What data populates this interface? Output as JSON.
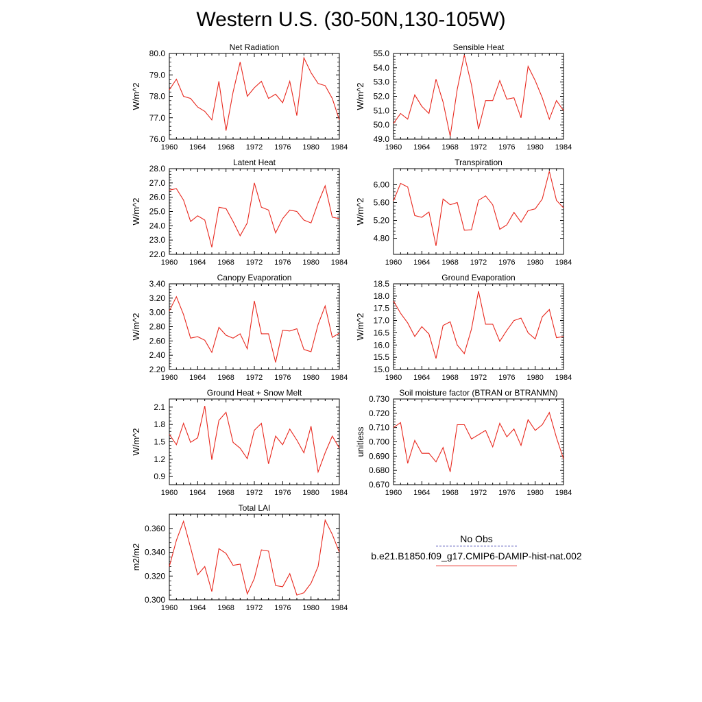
{
  "title": "Western U.S. (30-50N,130-105W)",
  "line_color": "#e8281e",
  "legend": {
    "obs_label": "No Obs",
    "obs_color": "#3b3bb0",
    "case_label": "b.e21.B1850.f09_g17.CMIP6-DAMIP-hist-nat.002",
    "case_color": "#e8281e"
  },
  "chart_data": [
    {
      "type": "line",
      "title": "Net Radiation",
      "ylabel": "W/m^2",
      "xlim": [
        1960,
        1984
      ],
      "ylim": [
        76.0,
        80.0
      ],
      "yticks": [
        "80.0",
        "79.0",
        "78.0",
        "77.0",
        "76.0"
      ],
      "xticks": [
        "1960",
        "1964",
        "1968",
        "1972",
        "1976",
        "1980",
        "1984"
      ],
      "x": [
        1960,
        1961,
        1962,
        1963,
        1964,
        1965,
        1966,
        1967,
        1968,
        1969,
        1970,
        1971,
        1972,
        1973,
        1974,
        1975,
        1976,
        1977,
        1978,
        1979,
        1980,
        1981,
        1982,
        1983,
        1984
      ],
      "series": [
        {
          "values": [
            78.3,
            78.8,
            78.0,
            77.9,
            77.5,
            77.3,
            76.9,
            78.7,
            76.4,
            78.2,
            79.6,
            78.0,
            78.4,
            78.7,
            77.9,
            78.1,
            77.7,
            78.7,
            77.1,
            79.8,
            79.1,
            78.6,
            78.5,
            77.9,
            76.9
          ]
        }
      ]
    },
    {
      "type": "line",
      "title": "Sensible Heat",
      "ylabel": "W/m^2",
      "xlim": [
        1960,
        1984
      ],
      "ylim": [
        49.0,
        55.0
      ],
      "yticks": [
        "55.0",
        "54.0",
        "53.0",
        "52.0",
        "51.0",
        "50.0",
        "49.0"
      ],
      "xticks": [
        "1960",
        "1964",
        "1968",
        "1972",
        "1976",
        "1980",
        "1984"
      ],
      "x": [
        1960,
        1961,
        1962,
        1963,
        1964,
        1965,
        1966,
        1967,
        1968,
        1969,
        1970,
        1971,
        1972,
        1973,
        1974,
        1975,
        1976,
        1977,
        1978,
        1979,
        1980,
        1981,
        1982,
        1983,
        1984
      ],
      "series": [
        {
          "values": [
            50.1,
            50.8,
            50.4,
            52.1,
            51.3,
            50.8,
            53.2,
            51.6,
            49.2,
            52.5,
            54.9,
            52.8,
            49.7,
            51.7,
            51.7,
            53.1,
            51.8,
            51.9,
            50.5,
            54.1,
            53.1,
            51.9,
            50.4,
            51.7,
            51.0
          ]
        }
      ]
    },
    {
      "type": "line",
      "title": "Latent Heat",
      "ylabel": "W/m^2",
      "xlim": [
        1960,
        1984
      ],
      "ylim": [
        22.0,
        28.0
      ],
      "yticks": [
        "28.0",
        "27.0",
        "26.0",
        "25.0",
        "24.0",
        "23.0",
        "22.0"
      ],
      "xticks": [
        "1960",
        "1964",
        "1968",
        "1972",
        "1976",
        "1980",
        "1984"
      ],
      "x": [
        1960,
        1961,
        1962,
        1963,
        1964,
        1965,
        1966,
        1967,
        1968,
        1969,
        1970,
        1971,
        1972,
        1973,
        1974,
        1975,
        1976,
        1977,
        1978,
        1979,
        1980,
        1981,
        1982,
        1983,
        1984
      ],
      "series": [
        {
          "values": [
            26.5,
            26.6,
            25.8,
            24.3,
            24.7,
            24.4,
            22.5,
            25.3,
            25.2,
            24.3,
            23.3,
            24.2,
            27.0,
            25.3,
            25.1,
            23.5,
            24.5,
            25.1,
            25.0,
            24.4,
            24.2,
            25.6,
            26.8,
            24.6,
            24.5
          ]
        }
      ]
    },
    {
      "type": "line",
      "title": "Transpiration",
      "ylabel": "W/m^2",
      "xlim": [
        1960,
        1984
      ],
      "ylim": [
        4.44,
        6.36
      ],
      "yticks": [
        "6.00",
        "5.60",
        "5.20",
        "4.80"
      ],
      "ytick_values": [
        6.0,
        5.6,
        5.2,
        4.8
      ],
      "xticks": [
        "1960",
        "1964",
        "1968",
        "1972",
        "1976",
        "1980",
        "1984"
      ],
      "x": [
        1960,
        1961,
        1962,
        1963,
        1964,
        1965,
        1966,
        1967,
        1968,
        1969,
        1970,
        1971,
        1972,
        1973,
        1974,
        1975,
        1976,
        1977,
        1978,
        1979,
        1980,
        1981,
        1982,
        1983,
        1984
      ],
      "series": [
        {
          "values": [
            5.64,
            6.03,
            5.95,
            5.31,
            5.27,
            5.39,
            4.63,
            5.68,
            5.55,
            5.6,
            4.98,
            4.99,
            5.65,
            5.75,
            5.55,
            5.0,
            5.1,
            5.38,
            5.16,
            5.42,
            5.46,
            5.68,
            6.3,
            5.65,
            5.48
          ]
        }
      ]
    },
    {
      "type": "line",
      "title": "Canopy Evaporation",
      "ylabel": "W/m^2",
      "xlim": [
        1960,
        1984
      ],
      "ylim": [
        2.2,
        3.4
      ],
      "yticks": [
        "3.40",
        "3.20",
        "3.00",
        "2.80",
        "2.60",
        "2.40",
        "2.20"
      ],
      "xticks": [
        "1960",
        "1964",
        "1968",
        "1972",
        "1976",
        "1980",
        "1984"
      ],
      "x": [
        1960,
        1961,
        1962,
        1963,
        1964,
        1965,
        1966,
        1967,
        1968,
        1969,
        1970,
        1971,
        1972,
        1973,
        1974,
        1975,
        1976,
        1977,
        1978,
        1979,
        1980,
        1981,
        1982,
        1983,
        1984
      ],
      "series": [
        {
          "values": [
            3.02,
            3.22,
            2.97,
            2.64,
            2.66,
            2.61,
            2.44,
            2.79,
            2.68,
            2.64,
            2.7,
            2.49,
            3.16,
            2.7,
            2.7,
            2.3,
            2.75,
            2.74,
            2.77,
            2.48,
            2.45,
            2.83,
            3.09,
            2.65,
            2.71
          ]
        }
      ]
    },
    {
      "type": "line",
      "title": "Ground Evaporation",
      "ylabel": "W/m^2",
      "xlim": [
        1960,
        1984
      ],
      "ylim": [
        15.0,
        18.5
      ],
      "yticks": [
        "18.5",
        "18.0",
        "17.5",
        "17.0",
        "16.5",
        "16.0",
        "15.5",
        "15.0"
      ],
      "xticks": [
        "1960",
        "1964",
        "1968",
        "1972",
        "1976",
        "1980",
        "1984"
      ],
      "x": [
        1960,
        1961,
        1962,
        1963,
        1964,
        1965,
        1966,
        1967,
        1968,
        1969,
        1970,
        1971,
        1972,
        1973,
        1974,
        1975,
        1976,
        1977,
        1978,
        1979,
        1980,
        1981,
        1982,
        1983,
        1984
      ],
      "series": [
        {
          "values": [
            17.8,
            17.3,
            16.9,
            16.35,
            16.75,
            16.45,
            15.45,
            16.8,
            16.95,
            16.0,
            15.65,
            16.65,
            18.2,
            16.85,
            16.85,
            16.15,
            16.6,
            17.0,
            17.1,
            16.5,
            16.25,
            17.15,
            17.45,
            16.3,
            16.35
          ]
        }
      ]
    },
    {
      "type": "line",
      "title": "Ground Heat + Snow Melt",
      "ylabel": "W/m^2",
      "xlim": [
        1960,
        1984
      ],
      "ylim": [
        0.76,
        2.24
      ],
      "yticks": [
        "2.1",
        "1.8",
        "1.5",
        "1.2",
        "0.9"
      ],
      "ytick_values": [
        2.1,
        1.8,
        1.5,
        1.2,
        0.9
      ],
      "xticks": [
        "1960",
        "1964",
        "1968",
        "1972",
        "1976",
        "1980",
        "1984"
      ],
      "x": [
        1960,
        1961,
        1962,
        1963,
        1964,
        1965,
        1966,
        1967,
        1968,
        1969,
        1970,
        1971,
        1972,
        1973,
        1974,
        1975,
        1976,
        1977,
        1978,
        1979,
        1980,
        1981,
        1982,
        1983,
        1984
      ],
      "series": [
        {
          "values": [
            1.63,
            1.45,
            1.82,
            1.49,
            1.57,
            2.12,
            1.19,
            1.87,
            2.01,
            1.49,
            1.39,
            1.21,
            1.7,
            1.82,
            1.12,
            1.6,
            1.45,
            1.72,
            1.53,
            1.31,
            1.77,
            0.98,
            1.31,
            1.6,
            1.39
          ]
        }
      ]
    },
    {
      "type": "line",
      "title": "Soil moisture factor (BTRAN or BTRANMN)",
      "ylabel": "unitless",
      "xlim": [
        1960,
        1984
      ],
      "ylim": [
        0.67,
        0.73
      ],
      "yticks": [
        "0.730",
        "0.720",
        "0.710",
        "0.700",
        "0.690",
        "0.680",
        "0.670"
      ],
      "xticks": [
        "1960",
        "1964",
        "1968",
        "1972",
        "1976",
        "1980",
        "1984"
      ],
      "x": [
        1960,
        1961,
        1962,
        1963,
        1964,
        1965,
        1966,
        1967,
        1968,
        1969,
        1970,
        1971,
        1972,
        1973,
        1974,
        1975,
        1976,
        1977,
        1978,
        1979,
        1980,
        1981,
        1982,
        1983,
        1984
      ],
      "series": [
        {
          "values": [
            0.71,
            0.7135,
            0.685,
            0.701,
            0.692,
            0.692,
            0.686,
            0.696,
            0.679,
            0.712,
            0.712,
            0.702,
            0.705,
            0.708,
            0.6965,
            0.713,
            0.7035,
            0.709,
            0.6975,
            0.7155,
            0.708,
            0.712,
            0.7205,
            0.703,
            0.688
          ]
        }
      ]
    },
    {
      "type": "line",
      "title": "Total LAI",
      "ylabel": "m2/m2",
      "xlim": [
        1960,
        1984
      ],
      "ylim": [
        0.3,
        0.372
      ],
      "yticks": [
        "0.360",
        "0.340",
        "0.320",
        "0.300"
      ],
      "ytick_values": [
        0.36,
        0.34,
        0.32,
        0.3
      ],
      "xticks": [
        "1960",
        "1964",
        "1968",
        "1972",
        "1976",
        "1980",
        "1984"
      ],
      "x": [
        1960,
        1961,
        1962,
        1963,
        1964,
        1965,
        1966,
        1967,
        1968,
        1969,
        1970,
        1971,
        1972,
        1973,
        1974,
        1975,
        1976,
        1977,
        1978,
        1979,
        1980,
        1981,
        1982,
        1983,
        1984
      ],
      "series": [
        {
          "values": [
            0.328,
            0.35,
            0.366,
            0.344,
            0.321,
            0.328,
            0.307,
            0.343,
            0.339,
            0.329,
            0.33,
            0.305,
            0.318,
            0.342,
            0.341,
            0.312,
            0.311,
            0.322,
            0.304,
            0.306,
            0.314,
            0.328,
            0.367,
            0.355,
            0.34
          ]
        }
      ]
    }
  ]
}
